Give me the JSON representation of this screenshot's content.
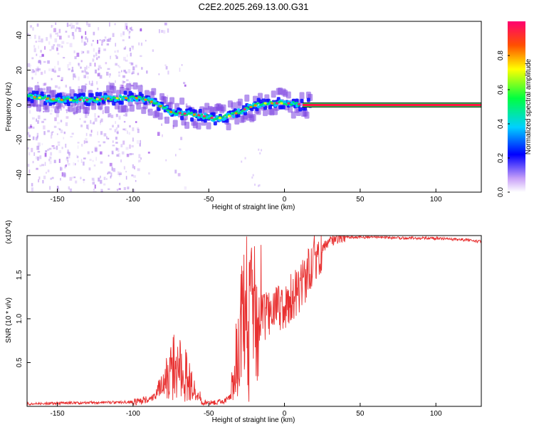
{
  "figure": {
    "title": "C2E2.2025.269.13.00.G31"
  },
  "chart_data": [
    {
      "type": "heatmap",
      "title": "C2E2.2025.269.13.00.G31",
      "xlabel": "Height of straight line (km)",
      "ylabel": "Frequency (Hz)",
      "xlim": [
        -170,
        130
      ],
      "ylim": [
        -50,
        48
      ],
      "xticks": [
        -150,
        -100,
        -50,
        0,
        50,
        100
      ],
      "yticks": [
        -40,
        -20,
        0,
        20,
        40
      ],
      "colorbar": {
        "label": "Normalized spectral amplitude",
        "range": [
          0,
          1
        ],
        "ticks": [
          "0.0",
          "0.2",
          "0.4",
          "0.6",
          "0.8"
        ],
        "tick_values": [
          0,
          0.2,
          0.4,
          0.6,
          0.8
        ],
        "colors": [
          "#ffffff",
          "#a070f0",
          "#0000ff",
          "#00c8ff",
          "#00ff60",
          "#ffff00",
          "#ff6000",
          "#ff0060"
        ]
      },
      "ridge": {
        "x": [
          -170,
          -150,
          -130,
          -110,
          -95,
          -85,
          -75,
          -65,
          -55,
          -45,
          -35,
          -25,
          -15,
          -5,
          5,
          15,
          130
        ],
        "y": [
          5,
          3,
          3,
          4,
          4,
          1,
          -4,
          -5,
          -6,
          -8,
          -6,
          -2,
          1,
          1,
          1,
          0,
          0
        ]
      },
      "grid": false
    },
    {
      "type": "line",
      "xlabel": "Height of straight line (km)",
      "ylabel": "SNR (10 * v/v)",
      "y_multiplier": "(x10^4)",
      "xlim": [
        -170,
        130
      ],
      "ylim": [
        0,
        1.95
      ],
      "xticks": [
        -150,
        -100,
        -50,
        0,
        50,
        100
      ],
      "yticks": [
        "0.5",
        "1.0",
        "1.5"
      ],
      "ytick_values": [
        0.5,
        1.0,
        1.5
      ],
      "color": "#e83030",
      "envelope": {
        "x": [
          -170,
          -100,
          -90,
          -80,
          -75,
          -70,
          -65,
          -60,
          -55,
          -50,
          -45,
          -40,
          -35,
          -30,
          -25,
          -20,
          -15,
          -10,
          -5,
          0,
          5,
          10,
          15,
          20,
          25,
          30,
          35,
          40,
          50,
          60,
          80,
          100,
          120,
          130
        ],
        "y": [
          0.03,
          0.05,
          0.08,
          0.15,
          0.35,
          0.35,
          0.3,
          0.12,
          0.05,
          0.04,
          0.04,
          0.06,
          0.12,
          0.55,
          0.9,
          0.95,
          1.0,
          1.05,
          1.1,
          1.15,
          1.25,
          1.35,
          1.5,
          1.7,
          1.8,
          1.88,
          1.92,
          1.93,
          1.93,
          1.93,
          1.92,
          1.92,
          1.9,
          1.88
        ]
      }
    }
  ]
}
